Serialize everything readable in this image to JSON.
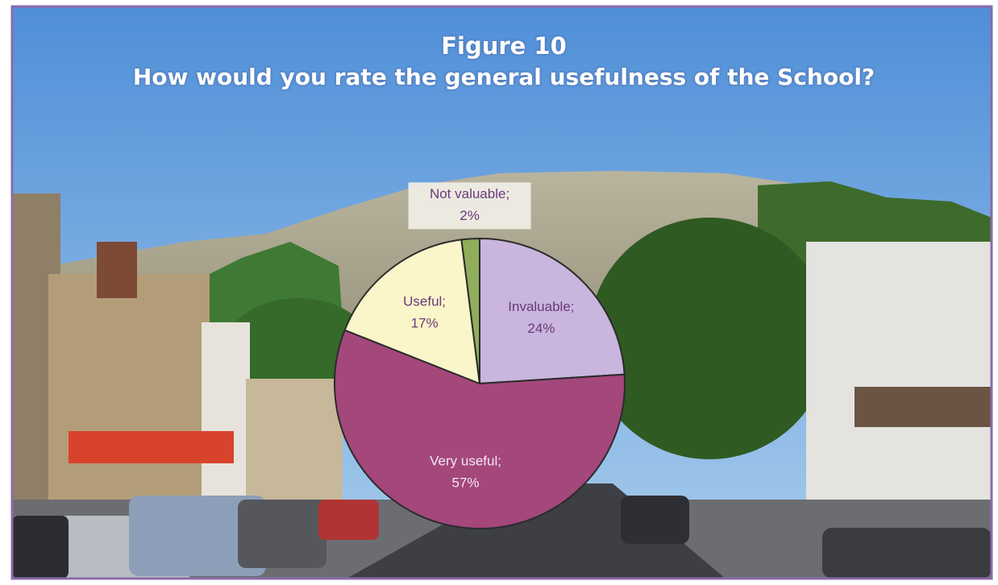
{
  "chart_data": {
    "type": "pie",
    "title": "Figure 10",
    "subtitle": "How would you rate the general usefulness of the School?",
    "categories": [
      "Invaluable;",
      "Very useful;",
      "Useful;",
      "Not valuable;"
    ],
    "values": [
      24,
      57,
      17,
      2
    ],
    "value_labels": [
      "24%",
      "57%",
      "17%",
      "2%"
    ],
    "colors": [
      "#c9b5dd",
      "#a4477b",
      "#fbf6c9",
      "#8fad5b"
    ]
  }
}
